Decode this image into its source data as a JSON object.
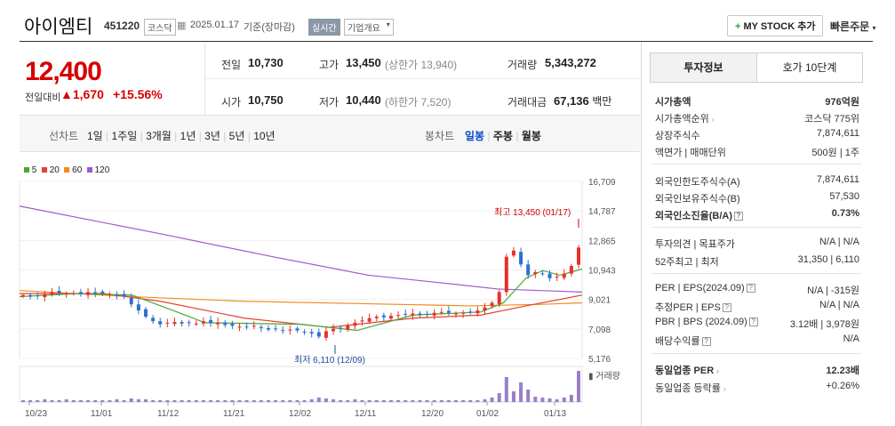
{
  "header": {
    "name": "아이엠티",
    "code": "451220",
    "market": "코스닥",
    "date": "2025.01.17",
    "basis": "기준(장마감)",
    "realtime": "실시간",
    "company_overview": "기업개요",
    "mystock": "MY STOCK 추가",
    "quick_order": "빠른주문"
  },
  "price": {
    "current": "12,400",
    "vs_label": "전일대비",
    "change": "1,670",
    "change_pct": "+15.56%",
    "prev_label": "전일",
    "prev": "10,730",
    "high_label": "고가",
    "high": "13,450",
    "upper_limit": "(상한가 13,940)",
    "volume_label": "거래량",
    "volume": "5,343,272",
    "open_label": "시가",
    "open": "10,750",
    "low_label": "저가",
    "low": "10,440",
    "lower_limit": "(하한가 7,520)",
    "amount_label": "거래대금",
    "amount": "67,136",
    "amount_unit": "백만"
  },
  "chart_tabs": {
    "line_label": "선차트",
    "periods": [
      "1일",
      "1주일",
      "3개월",
      "1년",
      "3년",
      "5년",
      "10년"
    ],
    "candle_label": "봉차트",
    "candle_periods": [
      "일봉",
      "주봉",
      "월봉"
    ]
  },
  "legend": [
    {
      "name": "5",
      "color": "#46a832"
    },
    {
      "name": "20",
      "color": "#e8402d"
    },
    {
      "name": "60",
      "color": "#f28b1d"
    },
    {
      "name": "120",
      "color": "#9a5bcc"
    }
  ],
  "chart_data": {
    "type": "candlestick",
    "y_ticks": [
      "16,709",
      "14,787",
      "12,865",
      "10,943",
      "9,021",
      "7,098",
      "5,176"
    ],
    "ylim": [
      5176,
      16709
    ],
    "x_ticks": [
      "10/23",
      "11/01",
      "11/12",
      "11/21",
      "12/02",
      "12/11",
      "12/20",
      "01/02",
      "01/13"
    ],
    "max_annotation": "최고 13,450 (01/17)",
    "min_annotation": "최저 6,110 (12/09)",
    "volume_label": "거래량",
    "colors": {
      "up": "#e8302a",
      "down": "#2f6fd6",
      "volume": "#9b7ec9"
    }
  },
  "right_panel": {
    "tabs": [
      "투자정보",
      "호가 10단계"
    ],
    "market_cap_label": "시가총액",
    "market_cap": "976억원",
    "rank_label": "시가총액순위",
    "rank": "코스닥 775위",
    "shares_label": "상장주식수",
    "shares": "7,874,611",
    "par_label": "액면가 | 매매단위",
    "par": "500원 | 1주",
    "foreign_limit_label": "외국인한도주식수(A)",
    "foreign_limit": "7,874,611",
    "foreign_hold_label": "외국인보유주식수(B)",
    "foreign_hold": "57,530",
    "foreign_ratio_label": "외국인소진율(B/A)",
    "foreign_ratio": "0.73%",
    "opinion_label": "투자의견 | 목표주가",
    "opinion": "N/A | N/A",
    "w52_label": "52주최고 | 최저",
    "w52": "31,350 | 6,110",
    "per_label": "PER | EPS(2024.09)",
    "per": "N/A | -315원",
    "est_per_label": "추정PER | EPS",
    "est_per": "N/A | N/A",
    "pbr_label": "PBR | BPS (2024.09)",
    "pbr": "3.12배 | 3,978원",
    "div_label": "배당수익률",
    "div": "N/A",
    "ind_per_label": "동일업종 PER",
    "ind_per": "12.23배",
    "ind_rate_label": "동일업종 등락률",
    "ind_rate": "+0.26%"
  }
}
